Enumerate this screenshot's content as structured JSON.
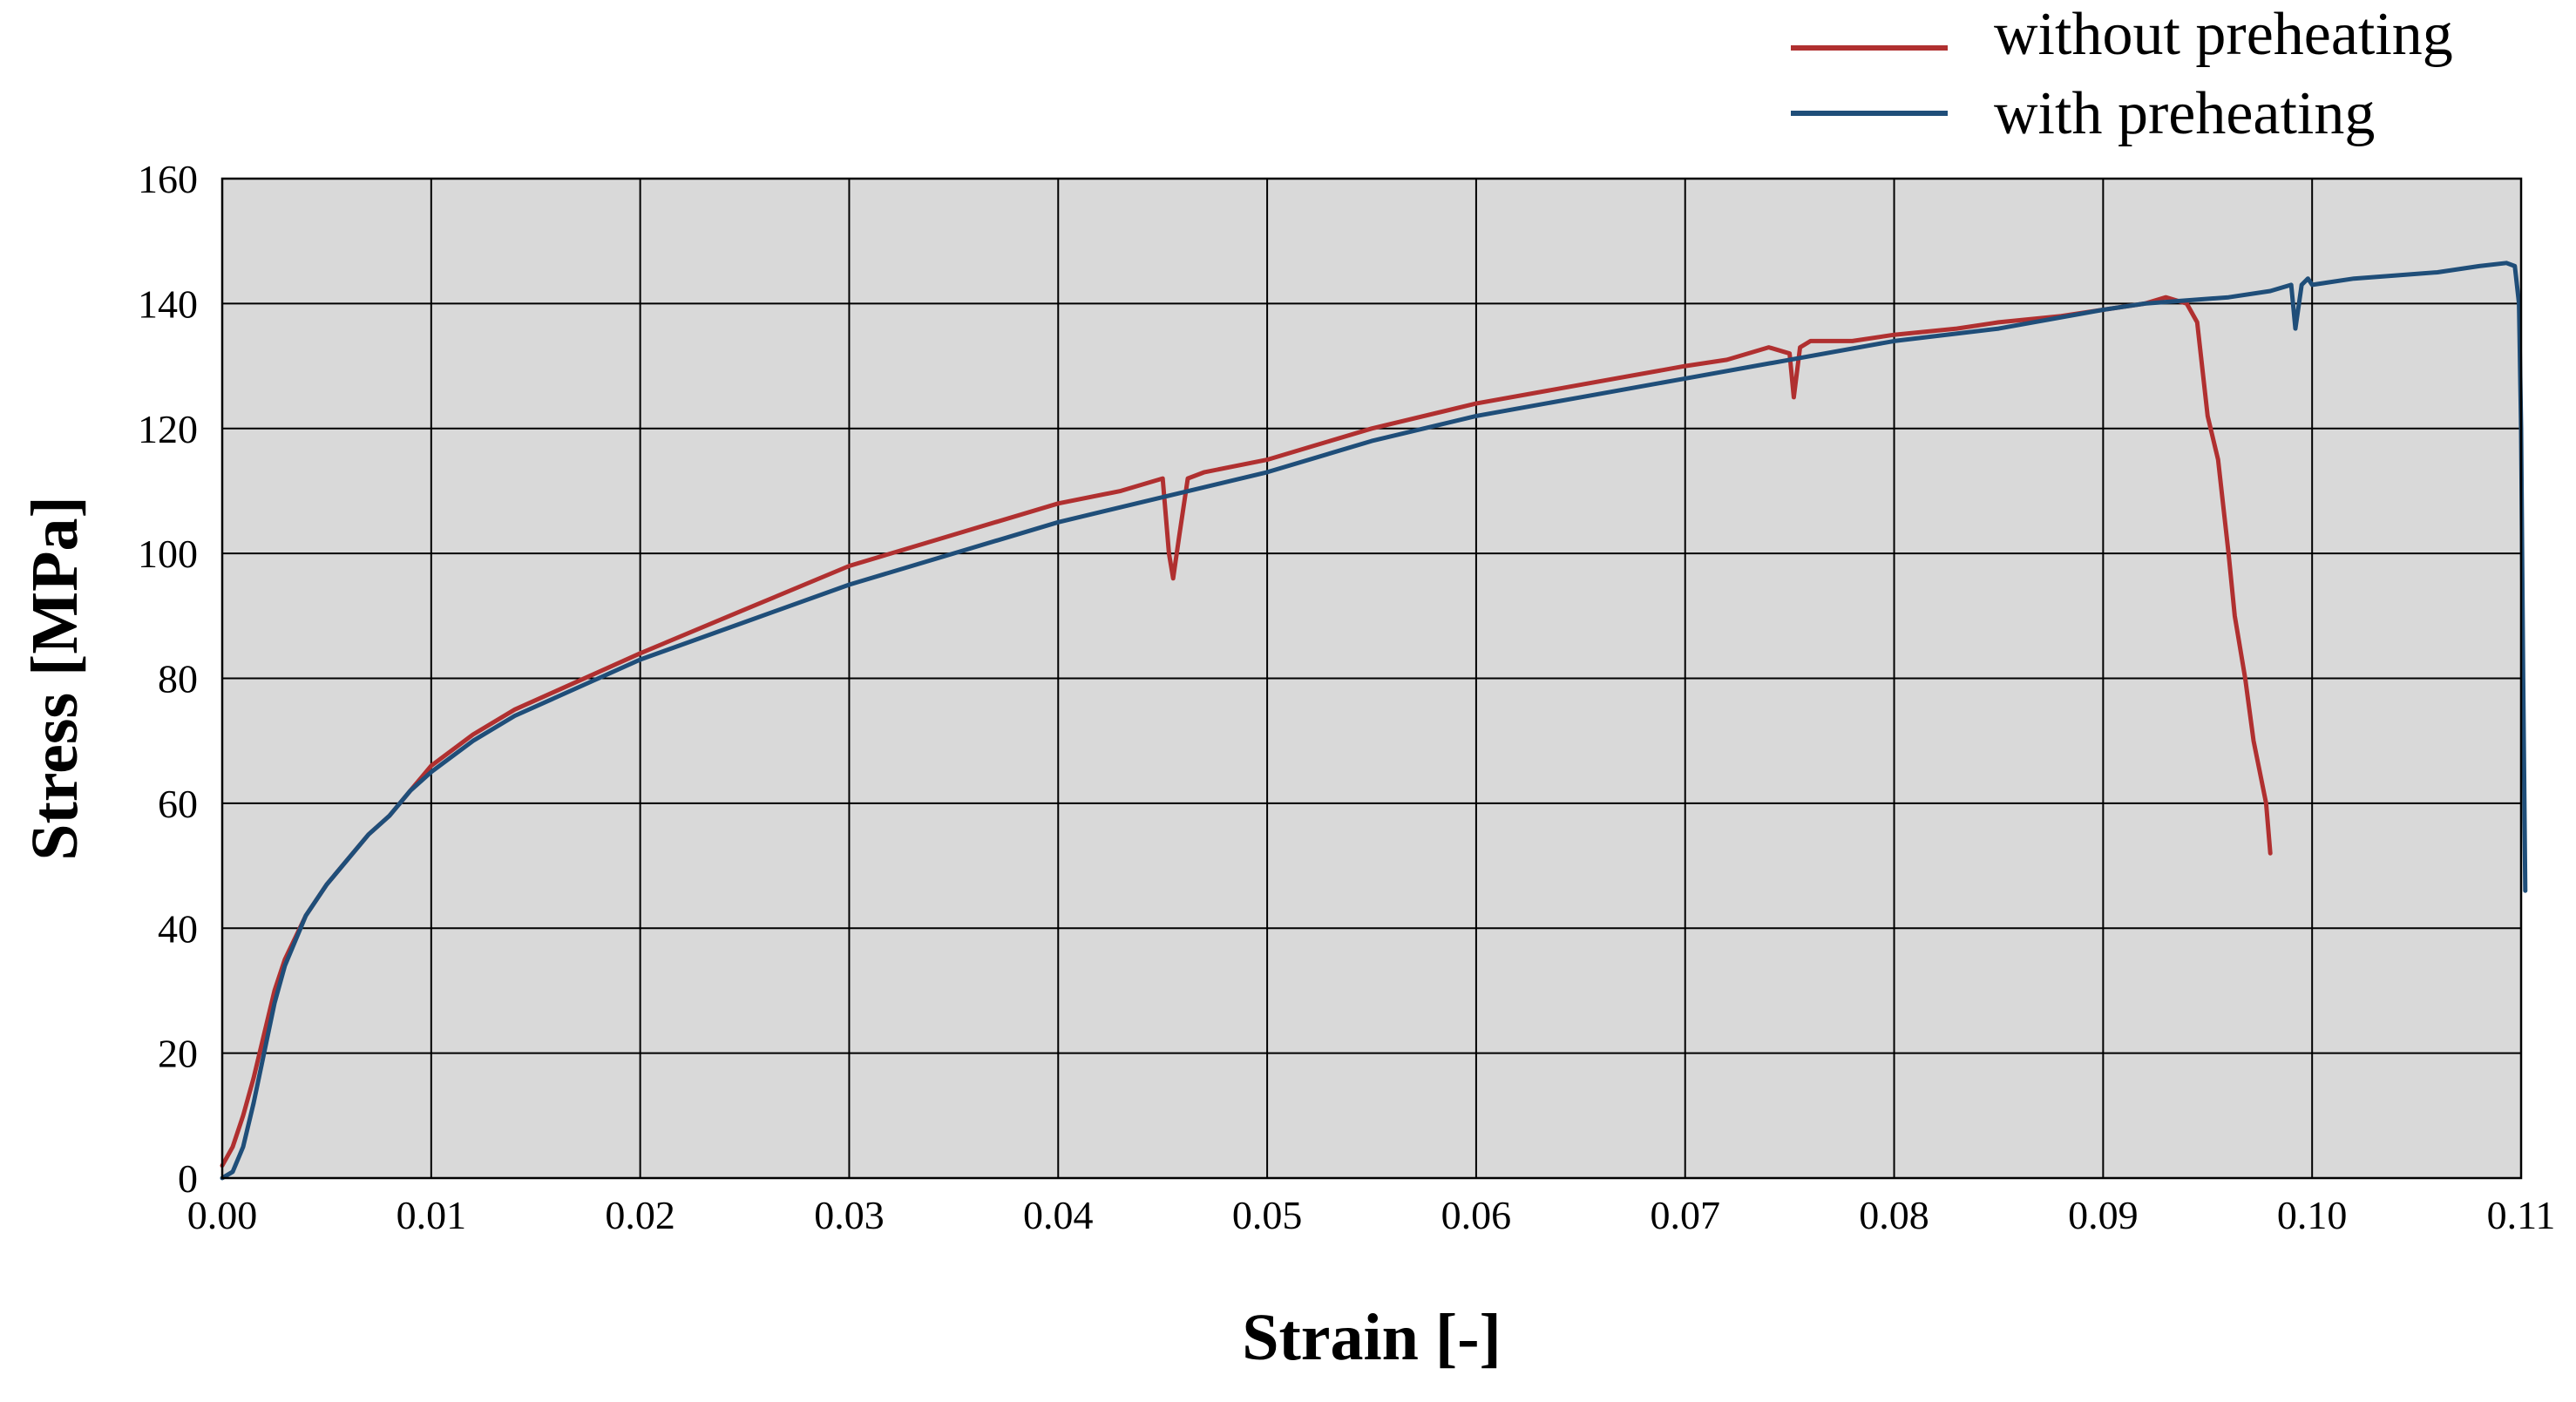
{
  "chart_data": {
    "type": "line",
    "title": "",
    "xlabel": "Strain [-]",
    "ylabel": "Stress [MPa]",
    "xlim": [
      0,
      0.11
    ],
    "ylim": [
      0,
      160
    ],
    "xticks": [
      0.0,
      0.01,
      0.02,
      0.03,
      0.04,
      0.05,
      0.06,
      0.07,
      0.08,
      0.09,
      0.1,
      0.11
    ],
    "xtick_labels": [
      "0.00",
      "0.01",
      "0.02",
      "0.03",
      "0.04",
      "0.05",
      "0.06",
      "0.07",
      "0.08",
      "0.09",
      "0.10",
      "0.11"
    ],
    "yticks": [
      0,
      20,
      40,
      60,
      80,
      100,
      120,
      140,
      160
    ],
    "ytick_labels": [
      "0",
      "20",
      "40",
      "60",
      "80",
      "100",
      "120",
      "140",
      "160"
    ],
    "grid": true,
    "plot_background": "#d9d9d9",
    "legend_position": "top-right",
    "series": [
      {
        "name": "without preheating",
        "color": "#b03030",
        "x": [
          0.0,
          0.0005,
          0.001,
          0.0015,
          0.002,
          0.0025,
          0.003,
          0.004,
          0.005,
          0.006,
          0.007,
          0.008,
          0.009,
          0.01,
          0.012,
          0.014,
          0.016,
          0.018,
          0.02,
          0.025,
          0.03,
          0.035,
          0.04,
          0.043,
          0.045,
          0.0453,
          0.0455,
          0.0458,
          0.0462,
          0.047,
          0.05,
          0.055,
          0.06,
          0.065,
          0.07,
          0.072,
          0.074,
          0.075,
          0.0752,
          0.0755,
          0.076,
          0.078,
          0.08,
          0.083,
          0.085,
          0.088,
          0.09,
          0.092,
          0.093,
          0.094,
          0.0945,
          0.095,
          0.0955,
          0.096,
          0.0963,
          0.0968,
          0.0972,
          0.0975,
          0.0978,
          0.098
        ],
        "y": [
          2,
          5,
          10,
          16,
          23,
          30,
          35,
          42,
          47,
          51,
          55,
          58,
          62,
          66,
          71,
          75,
          78,
          81,
          84,
          91,
          98,
          103,
          108,
          110,
          112,
          100,
          96,
          103,
          112,
          113,
          115,
          120,
          124,
          127,
          130,
          131,
          133,
          132,
          125,
          133,
          134,
          134,
          135,
          136,
          137,
          138,
          139,
          140,
          141,
          140,
          137,
          122,
          115,
          100,
          90,
          80,
          70,
          65,
          60,
          52
        ]
      },
      {
        "name": "with preheating",
        "color": "#1f4e79",
        "x": [
          0.0,
          0.0005,
          0.001,
          0.0015,
          0.002,
          0.0025,
          0.003,
          0.004,
          0.005,
          0.006,
          0.007,
          0.008,
          0.009,
          0.01,
          0.012,
          0.014,
          0.016,
          0.018,
          0.02,
          0.025,
          0.03,
          0.035,
          0.04,
          0.045,
          0.05,
          0.055,
          0.06,
          0.065,
          0.07,
          0.075,
          0.08,
          0.085,
          0.09,
          0.092,
          0.094,
          0.096,
          0.098,
          0.099,
          0.0992,
          0.0995,
          0.0998,
          0.1,
          0.102,
          0.104,
          0.106,
          0.108,
          0.1093,
          0.1097,
          0.1099,
          0.11,
          0.1101,
          0.1102
        ],
        "y": [
          0,
          1,
          5,
          12,
          20,
          28,
          34,
          42,
          47,
          51,
          55,
          58,
          62,
          65,
          70,
          74,
          77,
          80,
          83,
          89,
          95,
          100,
          105,
          109,
          113,
          118,
          122,
          125,
          128,
          131,
          134,
          136,
          139,
          140,
          140.5,
          141,
          142,
          143,
          136,
          143,
          144,
          143,
          144,
          144.5,
          145,
          146,
          146.5,
          146,
          140,
          120,
          80,
          46
        ]
      }
    ]
  }
}
